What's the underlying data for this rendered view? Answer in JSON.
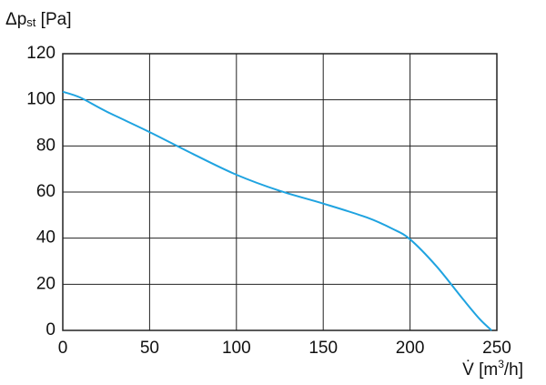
{
  "chart_data": {
    "type": "line",
    "ylabel": [
      "Δp",
      "st",
      " [Pa]"
    ],
    "xlabel": [
      "V̇ [m",
      "3",
      "/h]"
    ],
    "x": [
      0,
      10,
      25,
      50,
      75,
      100,
      125,
      150,
      175,
      190,
      200,
      215,
      230,
      240,
      247
    ],
    "series": [
      {
        "color": "#1fa3e0",
        "values": [
          103.5,
          101,
          95,
          86,
          76.5,
          67.5,
          60.5,
          55,
          49,
          44,
          39.5,
          28,
          14,
          5,
          0
        ]
      }
    ],
    "xlim": [
      0,
      250
    ],
    "xticks": [
      0,
      50,
      100,
      150,
      200,
      250
    ],
    "ylim": [
      0,
      120
    ],
    "yticks": [
      0,
      20,
      40,
      60,
      80,
      100,
      120
    ],
    "grid": true
  }
}
